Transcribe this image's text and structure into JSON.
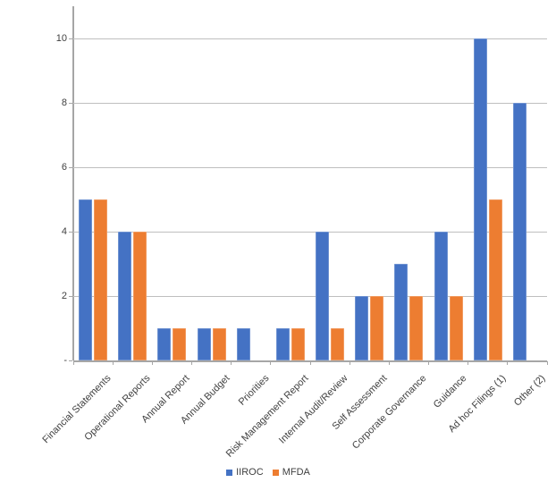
{
  "chart_data": {
    "type": "bar",
    "categories": [
      "Financial Statements",
      "Operational Reports",
      "Annual Report",
      "Annual Budget",
      "Priorities",
      "Risk Management Report",
      "Internal Audit/Review",
      "Self Assessment",
      "Corporate Governance",
      "Guidance",
      "Ad hoc Filings (1)",
      "Other (2)"
    ],
    "series": [
      {
        "name": "IIROC",
        "color": "#4472C4",
        "values": [
          5,
          4,
          1,
          1,
          1,
          1,
          4,
          2,
          3,
          4,
          10,
          8
        ]
      },
      {
        "name": "MFDA",
        "color": "#ED7D31",
        "values": [
          5,
          4,
          1,
          1,
          0,
          1,
          1,
          2,
          2,
          2,
          5,
          0
        ]
      }
    ],
    "ylim": [
      0,
      11
    ],
    "yticks": [
      {
        "value": 0,
        "label": "-"
      },
      {
        "value": 2,
        "label": "2"
      },
      {
        "value": 4,
        "label": "4"
      },
      {
        "value": 6,
        "label": "6"
      },
      {
        "value": 8,
        "label": "8"
      },
      {
        "value": 10,
        "label": "10"
      }
    ],
    "grid": true,
    "legend_position": "bottom"
  },
  "colors": {
    "grid": "#BFBFBF",
    "axis": "#A6A6A6",
    "label_text": "#404040",
    "background": "#FFFFFF"
  }
}
